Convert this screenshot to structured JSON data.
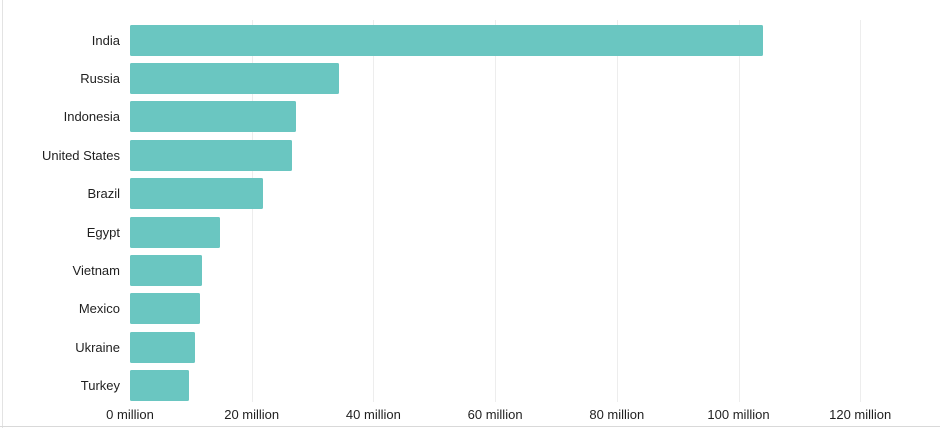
{
  "chart_data": {
    "type": "bar",
    "orientation": "horizontal",
    "title": "",
    "xlabel": "",
    "ylabel": "",
    "unit": "million",
    "categories": [
      "India",
      "Russia",
      "Indonesia",
      "United States",
      "Brazil",
      "Egypt",
      "Vietnam",
      "Mexico",
      "Ukraine",
      "Turkey"
    ],
    "values": [
      104,
      34.3,
      27.2,
      26.7,
      21.8,
      14.8,
      11.9,
      11.5,
      10.7,
      9.7
    ],
    "x_tick_labels": [
      "0 million",
      "20 million",
      "40 million",
      "60 million",
      "80 million",
      "100 million",
      "120 million"
    ],
    "x_tick_values": [
      0,
      20,
      40,
      60,
      80,
      100,
      120
    ],
    "xlim": [
      0,
      133
    ],
    "grid": "vertical-light",
    "legend": "none",
    "colors": {
      "bar": "#6ac6c1",
      "gridline": "#ededed",
      "category_text": "#1f1f1f",
      "axis_text": "#1f1f1f",
      "background": "#ffffff",
      "card_left_border": "#e3e3e3",
      "card_bottom_border": "#d9d9d9"
    }
  }
}
